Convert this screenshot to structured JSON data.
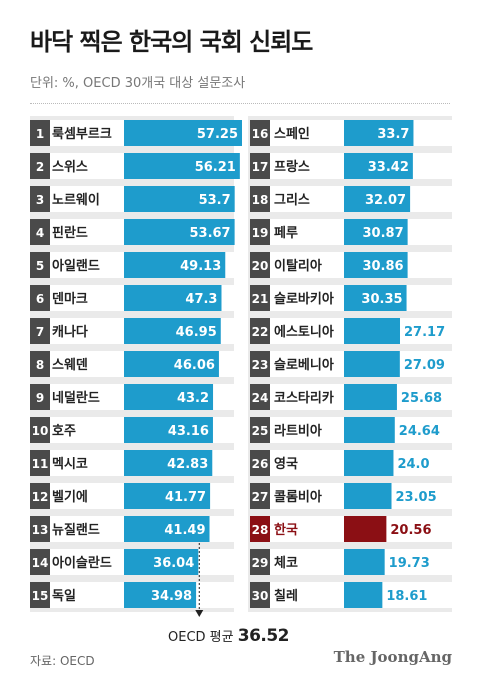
{
  "title": "바닥 찍은 한국의 국회 신뢰도",
  "subtitle": "단위: %, OECD 30개국 대상 설문조사",
  "source": "자료: OECD",
  "logo": "The JoongAng",
  "average": {
    "label": "OECD 평균",
    "value_text": "36.52",
    "value": 36.52
  },
  "colors": {
    "bar": "#1e9ccc",
    "highlight": "#8b0f14",
    "rank_box": "#4a4a4a",
    "panel": "#eaeaea"
  },
  "chart_data": {
    "type": "bar",
    "title": "바닥 찍은 한국의 국회 신뢰도",
    "unit": "%",
    "highlight": "한국",
    "average": 36.52,
    "ranks": [
      1,
      2,
      3,
      4,
      5,
      6,
      7,
      8,
      9,
      10,
      11,
      12,
      13,
      14,
      15,
      16,
      17,
      18,
      19,
      20,
      21,
      22,
      23,
      24,
      25,
      26,
      27,
      28,
      29,
      30
    ],
    "categories": [
      "룩셈부르크",
      "스위스",
      "노르웨이",
      "핀란드",
      "아일랜드",
      "덴마크",
      "캐나다",
      "스웨덴",
      "네덜란드",
      "호주",
      "멕시코",
      "벨기에",
      "뉴질랜드",
      "아이슬란드",
      "독일",
      "스페인",
      "프랑스",
      "그리스",
      "페루",
      "이탈리아",
      "슬로바키아",
      "에스토니아",
      "슬로베니아",
      "코스타리카",
      "라트비아",
      "영국",
      "콜롬비아",
      "한국",
      "체코",
      "칠레"
    ],
    "values": [
      57.25,
      56.21,
      53.7,
      53.67,
      49.13,
      47.3,
      46.95,
      46.06,
      43.2,
      43.16,
      42.83,
      41.77,
      41.49,
      36.04,
      34.98,
      33.7,
      33.42,
      32.07,
      30.87,
      30.86,
      30.35,
      27.17,
      27.09,
      25.68,
      24.64,
      24.0,
      23.05,
      20.56,
      19.73,
      18.61
    ],
    "value_labels": [
      "57.25",
      "56.21",
      "53.7",
      "53.67",
      "49.13",
      "47.3",
      "46.95",
      "46.06",
      "43.2",
      "43.16",
      "42.83",
      "41.77",
      "41.49",
      "36.04",
      "34.98",
      "33.7",
      "33.42",
      "32.07",
      "30.87",
      "30.86",
      "30.35",
      "27.17",
      "27.09",
      "25.68",
      "24.64",
      "24.0",
      "23.05",
      "20.56",
      "19.73",
      "18.61"
    ]
  }
}
